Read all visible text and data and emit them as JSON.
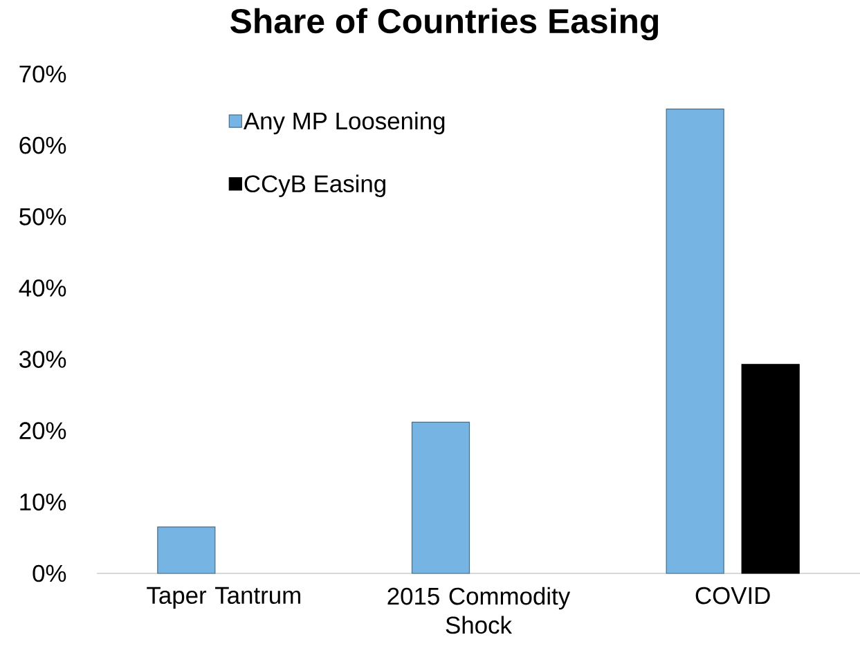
{
  "chart_data": {
    "type": "bar",
    "title": "Share of Countries Easing",
    "categories": [
      "Taper Tantrum",
      "2015 Commodity Shock",
      "COVID"
    ],
    "series": [
      {
        "name": "Any MP Loosening",
        "color": "#76b5e3",
        "values": [
          6.5,
          21.2,
          65.1
        ]
      },
      {
        "name": "CCyB Easing",
        "color": "#000000",
        "values": [
          null,
          null,
          29.3
        ]
      }
    ],
    "ylim": [
      0,
      70
    ],
    "yticks": [
      {
        "value": 0,
        "label": "0%"
      },
      {
        "value": 10,
        "label": "10%"
      },
      {
        "value": 20,
        "label": "20%"
      },
      {
        "value": 30,
        "label": "30%"
      },
      {
        "value": 40,
        "label": "40%"
      },
      {
        "value": 50,
        "label": "50%"
      },
      {
        "value": 60,
        "label": "60%"
      },
      {
        "value": 70,
        "label": "70%"
      }
    ],
    "grid": false,
    "legend": "top left"
  }
}
